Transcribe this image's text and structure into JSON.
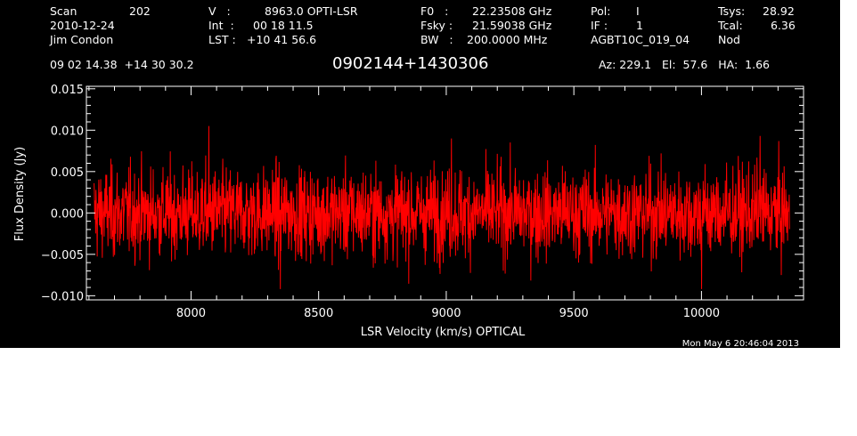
{
  "header": {
    "col1": [
      "Scan",
      "2010-12-24",
      "Jim Condon"
    ],
    "scan_number": "202",
    "col2": [
      "V   :",
      "Int  :",
      "LST :"
    ],
    "col2_vals": [
      "8963.0 OPTI-LSR",
      "00 18 11.5",
      "+10 41 56.6"
    ],
    "col3": [
      "F0   :",
      "Fsky :",
      "BW   :"
    ],
    "col3_vals": [
      "22.23508 GHz",
      "21.59038 GHz",
      "200.0000 MHz"
    ],
    "col4": [
      "Pol:",
      "IF :",
      "AGBT10C_019_04"
    ],
    "col4_vals": [
      "I",
      "1",
      ""
    ],
    "col5": [
      "Tsys:",
      "Tcal:",
      "Nod"
    ],
    "col5_vals": [
      "28.92",
      "6.36",
      ""
    ],
    "coords": "09 02 14.38  +14 30 30.2",
    "source": "0902144+1430306",
    "azelha": "Az: 229.1   El:  57.6   HA:  1.66",
    "timestamp": "Mon May  6 20:46:04 2013"
  },
  "colors": {
    "background": "#000000",
    "axes": "#ffffff",
    "trace": "#ff0000"
  },
  "chart_data": {
    "type": "line",
    "title": "0902144+1430306",
    "xlabel": "LSR Velocity (km/s) OPTICAL",
    "ylabel": "Flux Density (Jy)",
    "xlim": [
      7590,
      10400
    ],
    "ylim": [
      -0.0105,
      0.0153
    ],
    "x_ticks": [
      8000,
      8500,
      9000,
      9500,
      10000
    ],
    "x_tick_labels": [
      "8000",
      "8500",
      "9000",
      "9500",
      "10000"
    ],
    "y_ticks": [
      -0.01,
      -0.005,
      0.0,
      0.005,
      0.01,
      0.015
    ],
    "y_tick_labels": [
      "−0.010",
      "−0.005",
      "0.000",
      "0.005",
      "0.010",
      "0.015"
    ],
    "grid": false,
    "series": [
      {
        "color": "#ff0000",
        "x_range": [
          7620,
          10345
        ],
        "mean": 0.0,
        "rms": 0.0027,
        "min": -0.0093,
        "max": 0.0105,
        "note_points": [
          [
            8070,
            0.0105
          ],
          [
            10230,
            0.0093
          ],
          [
            9020,
            0.009
          ],
          [
            8350,
            -0.0092
          ],
          [
            10000,
            -0.0092
          ]
        ]
      }
    ]
  }
}
